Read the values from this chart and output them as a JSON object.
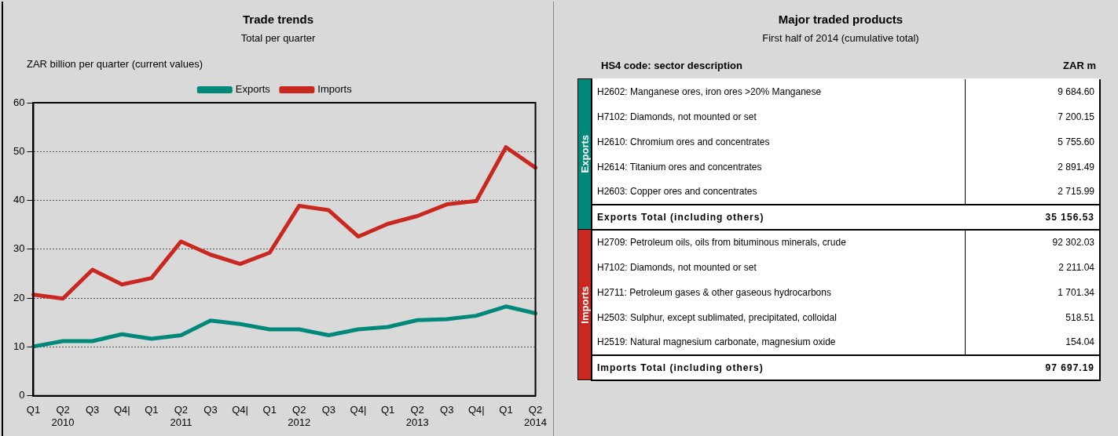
{
  "chart_data": [
    {
      "type": "line",
      "title": "Trade trends",
      "subtitle": "Total per quarter",
      "ylabel": "ZAR billion per quarter (current values)",
      "categories": [
        "Q1",
        "Q2\n2010",
        "Q3",
        "Q4|",
        "Q1",
        "Q2\n2011",
        "Q3",
        "Q4|",
        "Q1",
        "Q2\n2012",
        "Q3",
        "Q4|",
        "Q1",
        "Q2\n2013",
        "Q3",
        "Q4|",
        "Q1",
        "Q2\n2014"
      ],
      "series": [
        {
          "name": "Exports",
          "color": "#00897b",
          "values": [
            10.1,
            11.2,
            11.2,
            12.6,
            11.7,
            12.4,
            15.4,
            14.7,
            13.6,
            13.6,
            12.4,
            13.6,
            14.1,
            15.5,
            15.7,
            16.4,
            18.3,
            16.9
          ]
        },
        {
          "name": "Imports",
          "color": "#c8281f",
          "values": [
            20.7,
            19.9,
            25.8,
            22.8,
            24.1,
            31.6,
            28.9,
            27.0,
            29.3,
            38.9,
            38.0,
            32.6,
            35.2,
            36.8,
            39.2,
            39.9,
            50.9,
            46.7
          ]
        }
      ],
      "ylim": [
        0,
        60
      ],
      "yticks": [
        0,
        10,
        20,
        30,
        40,
        50,
        60
      ],
      "grid": "y",
      "legend": "top",
      "marker": "none",
      "line_style": "solid"
    },
    {
      "type": "other",
      "title": "Major traded products",
      "subtitle": "First half of 2014 (cumulative total)",
      "xlabel": "HS4 code: sector description",
      "ylabel": "ZAR m",
      "categories": [
        "H2602: Manganese ores, iron ores >20% Manganese",
        "H7102: Diamonds, not mounted or set",
        "H2610: Chromium ores and concentrates",
        "H2614: Titanium ores and concentrates",
        "H2603: Copper ores and concentrates",
        "Exports Total (including others)",
        "H2709: Petroleum oils, oils from bituminous minerals, crude",
        "H7102: Diamonds, not mounted or set",
        "H2711: Petroleum gases & other gaseous hydrocarbons",
        "H2503: Sulphur, except sublimated, precipitated, colloidal",
        "H2519: Natural magnesium carbonate, magnesium oxide",
        "Imports Total (including others)"
      ],
      "series": [
        {
          "name": "Exports",
          "values": [
            9684.6,
            7200.15,
            5755.6,
            2891.49,
            2715.99,
            35156.53,
            null,
            null,
            null,
            null,
            null,
            null
          ],
          "value_labels": [
            "9 684.60",
            "7 200.15",
            "5 755.60",
            "2 891.49",
            "2 715.99",
            "35 156.53",
            null,
            null,
            null,
            null,
            null,
            null
          ]
        },
        {
          "name": "Imports",
          "values": [
            null,
            null,
            null,
            null,
            null,
            null,
            92302.03,
            2211.04,
            1701.34,
            518.51,
            154.04,
            97697.19
          ],
          "value_labels": [
            null,
            null,
            null,
            null,
            null,
            null,
            "92 302.03",
            "2 211.04",
            "1 701.34",
            "518.51",
            "154.04",
            "97 697.19"
          ]
        }
      ]
    }
  ]
}
